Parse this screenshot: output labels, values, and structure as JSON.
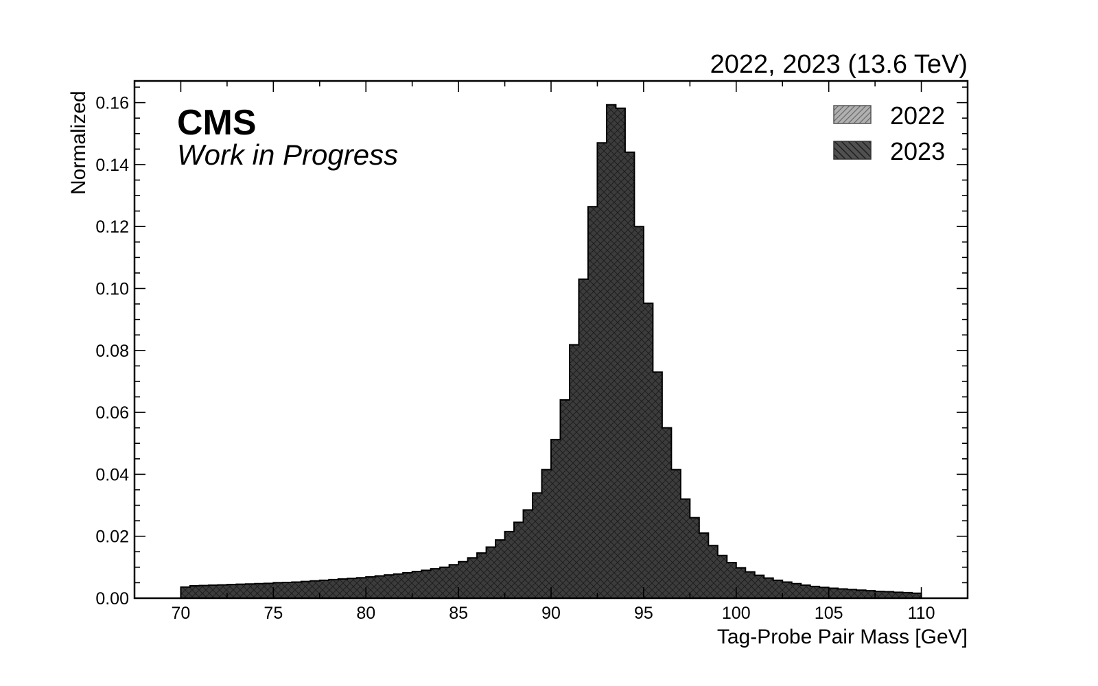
{
  "header": {
    "lumi_text": "2022, 2023 (13.6 TeV)",
    "experiment": "CMS",
    "status": "Work in Progress"
  },
  "legend": {
    "placement": "top-right",
    "entries": [
      {
        "label": "2022",
        "color": "#b0b0b0",
        "hatch": "diagonal-right"
      },
      {
        "label": "2023",
        "color": "#505050",
        "hatch": "diagonal-left"
      }
    ]
  },
  "chart_data": {
    "type": "bar",
    "histogram": true,
    "xlabel": "Tag-Probe Pair Mass [GeV]",
    "ylabel": "Normalized",
    "xlim": [
      67.5,
      112.5
    ],
    "ylim": [
      0.0,
      0.167
    ],
    "xticks": [
      "70",
      "75",
      "80",
      "85",
      "90",
      "95",
      "100",
      "105",
      "110"
    ],
    "yticks": [
      "0.00",
      "0.02",
      "0.04",
      "0.06",
      "0.08",
      "0.10",
      "0.12",
      "0.14",
      "0.16"
    ],
    "grid": false,
    "bin_range": [
      70,
      110
    ],
    "bin_width": 0.5,
    "series": [
      {
        "name": "2023",
        "fill": "#3c3c3c",
        "hatch": "cross",
        "values": [
          0.0036,
          0.004,
          0.0041,
          0.0042,
          0.0043,
          0.0044,
          0.0045,
          0.0046,
          0.0047,
          0.0048,
          0.005,
          0.0051,
          0.0052,
          0.0054,
          0.0056,
          0.0058,
          0.006,
          0.0062,
          0.0064,
          0.0066,
          0.0069,
          0.0072,
          0.0075,
          0.0078,
          0.0082,
          0.0086,
          0.009,
          0.0095,
          0.01,
          0.0108,
          0.0118,
          0.013,
          0.0146,
          0.0165,
          0.0188,
          0.0215,
          0.0245,
          0.0285,
          0.034,
          0.0415,
          0.0512,
          0.064,
          0.0818,
          0.103,
          0.1264,
          0.147,
          0.1593,
          0.1582,
          0.144,
          0.12,
          0.0952,
          0.073,
          0.055,
          0.0415,
          0.032,
          0.026,
          0.021,
          0.017,
          0.0138,
          0.0115,
          0.0098,
          0.0085,
          0.0074,
          0.0065,
          0.0058,
          0.0052,
          0.0047,
          0.0042,
          0.0038,
          0.0035,
          0.0032,
          0.003,
          0.0028,
          0.0026,
          0.0024,
          0.0022,
          0.0021,
          0.0019,
          0.0018,
          0.0016
        ]
      }
    ]
  }
}
